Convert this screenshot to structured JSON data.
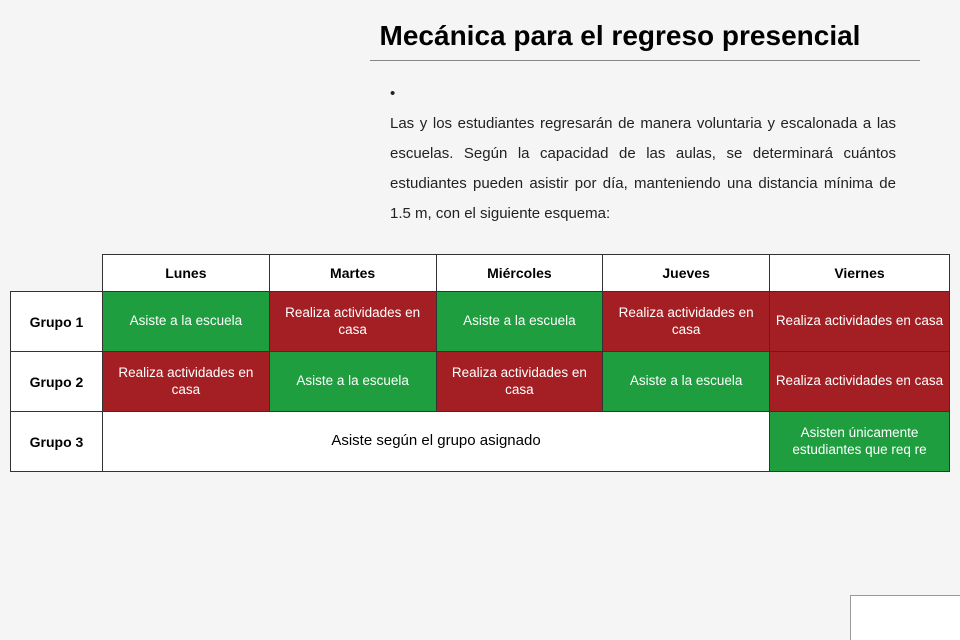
{
  "title": "Mecánica para el regreso presencial",
  "intro": "Las y los estudiantes regresarán de manera voluntaria y escalonada a las escuelas. Según la capacidad de las aulas, se determinará cuántos estudiantes pueden asistir por día, manteniendo una distancia mínima de 1.5 m, con el siguiente esquema:",
  "colors": {
    "green": "#1e9e3e",
    "red": "#a31f23",
    "white": "#ffffff",
    "text_dark": "#000000"
  },
  "table": {
    "columns": [
      "Lunes",
      "Martes",
      "Miércoles",
      "Jueves",
      "Viernes"
    ],
    "rows": [
      {
        "label": "Grupo 1",
        "cells": [
          {
            "text": "Asiste a la escuela",
            "bg": "#1e9e3e"
          },
          {
            "text": "Realiza actividades en casa",
            "bg": "#a31f23"
          },
          {
            "text": "Asiste a la escuela",
            "bg": "#1e9e3e"
          },
          {
            "text": "Realiza actividades en casa",
            "bg": "#a31f23"
          },
          {
            "text": "Realiza actividades en casa",
            "bg": "#a31f23"
          }
        ]
      },
      {
        "label": "Grupo 2",
        "cells": [
          {
            "text": "Realiza actividades en casa",
            "bg": "#a31f23"
          },
          {
            "text": "Asiste a la escuela",
            "bg": "#1e9e3e"
          },
          {
            "text": "Realiza actividades en casa",
            "bg": "#a31f23"
          },
          {
            "text": "Asiste a la escuela",
            "bg": "#1e9e3e"
          },
          {
            "text": "Realiza actividades en casa",
            "bg": "#a31f23"
          }
        ]
      },
      {
        "label": "Grupo 3",
        "merged_text": "Asiste según el grupo asignado",
        "last_cell": {
          "text": "Asisten únicamente estudiantes que req re",
          "bg": "#1e9e3e"
        }
      }
    ]
  }
}
